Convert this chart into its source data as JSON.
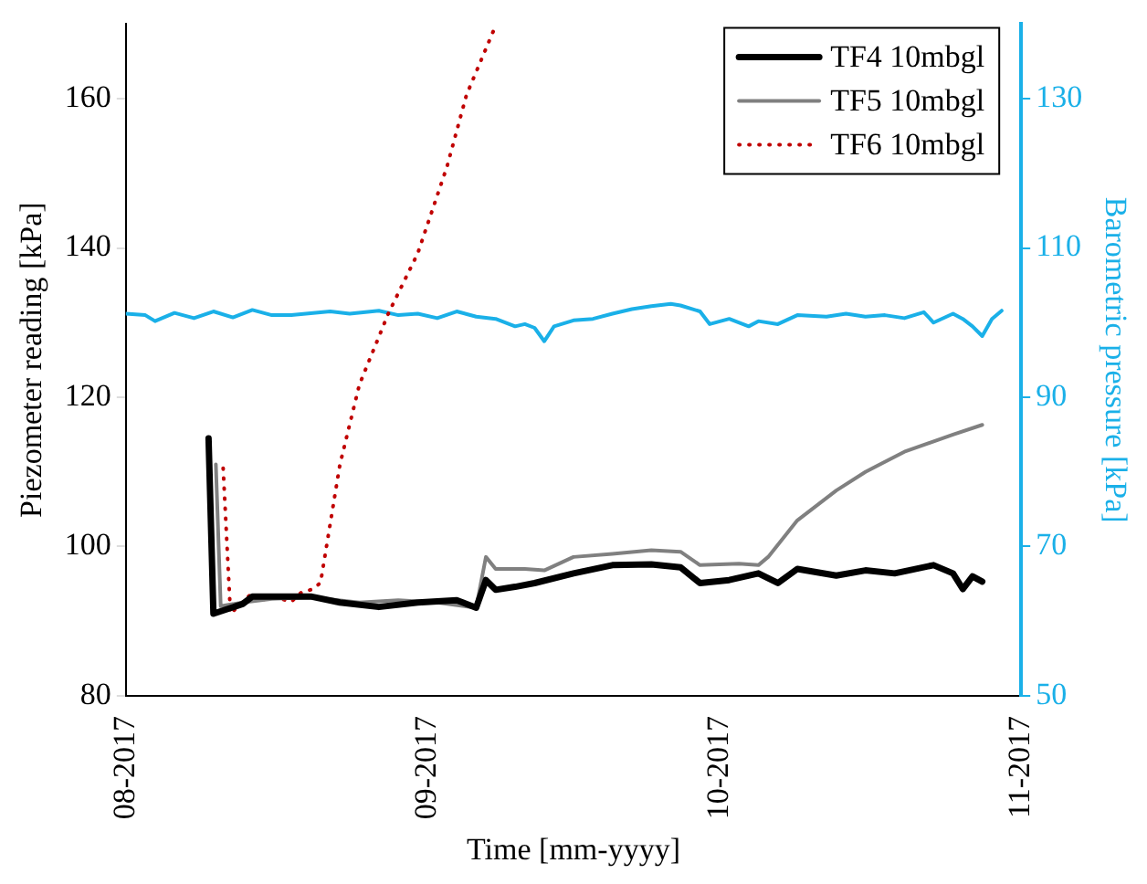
{
  "chart_data": {
    "type": "line",
    "xlabel": "Time [mm-yyyy]",
    "ylabel": "Piezometer reading [kPa]",
    "y2label": "Barometric pressure [kPa]",
    "xlim": [
      "2017-08-01",
      "2017-11-01"
    ],
    "xticks": [
      {
        "value": "2017-08-01",
        "label": "08-2017"
      },
      {
        "value": "2017-09-01",
        "label": "09-2017"
      },
      {
        "value": "2017-10-01",
        "label": "10-2017"
      },
      {
        "value": "2017-11-01",
        "label": "11-2017"
      }
    ],
    "ylim": [
      80,
      170
    ],
    "yticks": [
      80,
      100,
      120,
      140,
      160
    ],
    "y2lim": [
      50,
      140
    ],
    "y2ticks": [
      50,
      70,
      90,
      110,
      130
    ],
    "grid": false,
    "legend": "top right",
    "marker": "none",
    "series": [
      {
        "name": "TF4 10mbgl",
        "color": "#000000",
        "line_style": "solid",
        "x": [
          "2017-08-09T12:00",
          "2017-08-10",
          "2017-08-13",
          "2017-08-14",
          "2017-08-20",
          "2017-08-23",
          "2017-08-27",
          "2017-08-31",
          "2017-09-04",
          "2017-09-06",
          "2017-09-07",
          "2017-09-08",
          "2017-09-10",
          "2017-09-12",
          "2017-09-16",
          "2017-09-20",
          "2017-09-24",
          "2017-09-27",
          "2017-09-29",
          "2017-10-02",
          "2017-10-05",
          "2017-10-07",
          "2017-10-09",
          "2017-10-13",
          "2017-10-16",
          "2017-10-19",
          "2017-10-23",
          "2017-10-25",
          "2017-10-26",
          "2017-10-27",
          "2017-10-28"
        ],
        "values": [
          114.5,
          91,
          92.3,
          93.3,
          93.3,
          92.5,
          91.9,
          92.5,
          92.8,
          91.8,
          95.5,
          94.2,
          94.6,
          95.1,
          96.4,
          97.5,
          97.6,
          97.2,
          95.1,
          95.5,
          96.4,
          95.1,
          97,
          96.1,
          96.8,
          96.4,
          97.5,
          96.4,
          94.3,
          96,
          95.3
        ]
      },
      {
        "name": "TF5 10mbgl",
        "color": "#808080",
        "line_style": "solid",
        "x": [
          "2017-08-10T06:00",
          "2017-08-10T18:00",
          "2017-08-13",
          "2017-08-16",
          "2017-08-20",
          "2017-08-25",
          "2017-08-29",
          "2017-09-02",
          "2017-09-06",
          "2017-09-07",
          "2017-09-08",
          "2017-09-11",
          "2017-09-13",
          "2017-09-16",
          "2017-09-20",
          "2017-09-24",
          "2017-09-27",
          "2017-09-29",
          "2017-10-03",
          "2017-10-05",
          "2017-10-06",
          "2017-10-09",
          "2017-10-13",
          "2017-10-16",
          "2017-10-20",
          "2017-10-25",
          "2017-10-28"
        ],
        "values": [
          111,
          92,
          92.5,
          93,
          93.2,
          92.5,
          92.8,
          92.5,
          91.8,
          98.6,
          97,
          97,
          96.8,
          98.6,
          99,
          99.5,
          99.3,
          97.5,
          97.7,
          97.5,
          98.6,
          103.5,
          107.5,
          110,
          112.7,
          115,
          116.3
        ]
      },
      {
        "name": "TF6 10mbgl",
        "color": "#c00000",
        "line_style": "dotted",
        "x": [
          "2017-08-11",
          "2017-08-11T18:00",
          "2017-08-14",
          "2017-08-15",
          "2017-08-16",
          "2017-08-18",
          "2017-08-19",
          "2017-08-20",
          "2017-08-21",
          "2017-08-23",
          "2017-08-25",
          "2017-08-28",
          "2017-08-31",
          "2017-09-03",
          "2017-09-05",
          "2017-09-08"
        ],
        "values": [
          110.5,
          91,
          93.8,
          92.8,
          93.3,
          92.6,
          93.8,
          94.2,
          95.1,
          111,
          121.7,
          131.3,
          139.3,
          150.9,
          160.5,
          169.8
        ]
      },
      {
        "color": "#1ab0e8",
        "axis": "y2",
        "line_style": "solid",
        "x": [
          "2017-08-01",
          "2017-08-03",
          "2017-08-04",
          "2017-08-06",
          "2017-08-08",
          "2017-08-10",
          "2017-08-12",
          "2017-08-14",
          "2017-08-16",
          "2017-08-18",
          "2017-08-22",
          "2017-08-24",
          "2017-08-27",
          "2017-08-29",
          "2017-08-31",
          "2017-09-02",
          "2017-09-04",
          "2017-09-06",
          "2017-09-08",
          "2017-09-10",
          "2017-09-11",
          "2017-09-12",
          "2017-09-13",
          "2017-09-14",
          "2017-09-16",
          "2017-09-18",
          "2017-09-20",
          "2017-09-22",
          "2017-09-24",
          "2017-09-26",
          "2017-09-27",
          "2017-09-29",
          "2017-09-30",
          "2017-10-02",
          "2017-10-04",
          "2017-10-05",
          "2017-10-07",
          "2017-10-09",
          "2017-10-12",
          "2017-10-14",
          "2017-10-16",
          "2017-10-18",
          "2017-10-20",
          "2017-10-22",
          "2017-10-23",
          "2017-10-25",
          "2017-10-26",
          "2017-10-27",
          "2017-10-28",
          "2017-10-29",
          "2017-10-30"
        ],
        "values": [
          101.2,
          101,
          100.2,
          101.3,
          100.6,
          101.5,
          100.7,
          101.7,
          101,
          101,
          101.5,
          101.2,
          101.6,
          101,
          101.2,
          100.6,
          101.5,
          100.8,
          100.5,
          99.5,
          99.8,
          99.3,
          97.5,
          99.5,
          100.3,
          100.5,
          101.2,
          101.8,
          102.2,
          102.5,
          102.3,
          101.5,
          99.8,
          100.5,
          99.5,
          100.2,
          99.8,
          101,
          100.8,
          101.2,
          100.8,
          101,
          100.6,
          101.4,
          100,
          101.2,
          100.5,
          99.5,
          98.2,
          100.5,
          101.6
        ]
      }
    ]
  }
}
